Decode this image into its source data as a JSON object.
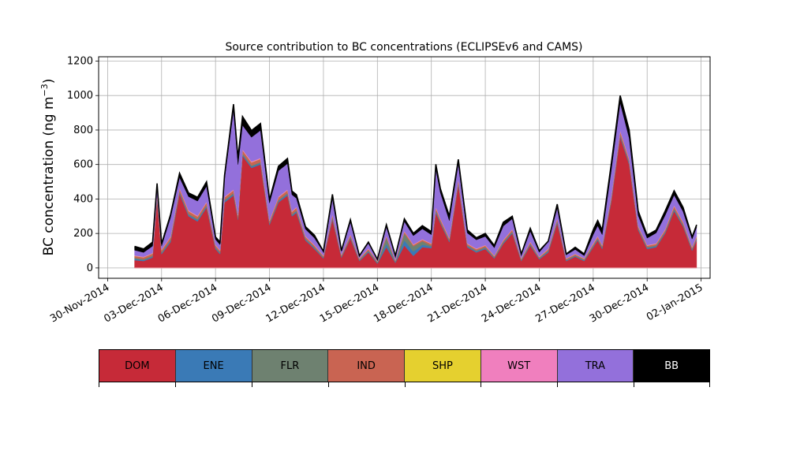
{
  "chart_data": {
    "type": "area",
    "title": "Source contribution to BC concentrations (ECLIPSEv6 and CAMS)",
    "ylabel_main": "BC concentration (ng m",
    "ylabel_sup": "−3",
    "ylabel_end": ")",
    "xlabel": "",
    "xlim": [
      "2014-11-29T12:00",
      "2015-01-02T12:00"
    ],
    "ylim": [
      -60,
      1225
    ],
    "grid": true,
    "legend_placement": "bottom",
    "x_ticks": [
      "2014-11-30",
      "2014-12-03",
      "2014-12-06",
      "2014-12-09",
      "2014-12-12",
      "2014-12-15",
      "2014-12-18",
      "2014-12-21",
      "2014-12-24",
      "2014-12-27",
      "2014-12-30",
      "2015-01-02"
    ],
    "x_tick_labels": [
      "30-Nov-2014",
      "03-Dec-2014",
      "06-Dec-2014",
      "09-Dec-2014",
      "12-Dec-2014",
      "15-Dec-2014",
      "18-Dec-2014",
      "21-Dec-2014",
      "24-Dec-2014",
      "27-Dec-2014",
      "30-Dec-2014",
      "02-Jan-2015"
    ],
    "y_ticks": [
      0,
      200,
      400,
      600,
      800,
      1000,
      1200
    ],
    "x": [
      "2014-12-01T12:00",
      "2014-12-02T00:00",
      "2014-12-02T12:00",
      "2014-12-02T18:00",
      "2014-12-03T00:00",
      "2014-12-03T12:00",
      "2014-12-04T00:00",
      "2014-12-04T12:00",
      "2014-12-05T00:00",
      "2014-12-05T12:00",
      "2014-12-06T00:00",
      "2014-12-06T06:00",
      "2014-12-06T12:00",
      "2014-12-07T00:00",
      "2014-12-07T06:00",
      "2014-12-07T12:00",
      "2014-12-08T00:00",
      "2014-12-08T12:00",
      "2014-12-09T00:00",
      "2014-12-09T12:00",
      "2014-12-10T00:00",
      "2014-12-10T06:00",
      "2014-12-10T12:00",
      "2014-12-11T00:00",
      "2014-12-11T12:00",
      "2014-12-12T00:00",
      "2014-12-12T12:00",
      "2014-12-13T00:00",
      "2014-12-13T12:00",
      "2014-12-14T00:00",
      "2014-12-14T12:00",
      "2014-12-15T00:00",
      "2014-12-15T12:00",
      "2014-12-16T00:00",
      "2014-12-16T12:00",
      "2014-12-17T00:00",
      "2014-12-17T12:00",
      "2014-12-18T00:00",
      "2014-12-18T06:00",
      "2014-12-18T12:00",
      "2014-12-19T00:00",
      "2014-12-19T12:00",
      "2014-12-20T00:00",
      "2014-12-20T12:00",
      "2014-12-21T00:00",
      "2014-12-21T12:00",
      "2014-12-22T00:00",
      "2014-12-22T12:00",
      "2014-12-23T00:00",
      "2014-12-23T12:00",
      "2014-12-24T00:00",
      "2014-12-24T12:00",
      "2014-12-25T00:00",
      "2014-12-25T12:00",
      "2014-12-26T00:00",
      "2014-12-26T12:00",
      "2014-12-27T00:00",
      "2014-12-27T06:00",
      "2014-12-27T12:00",
      "2014-12-28T00:00",
      "2014-12-28T12:00",
      "2014-12-29T00:00",
      "2014-12-29T12:00",
      "2014-12-30T00:00",
      "2014-12-30T12:00",
      "2014-12-31T00:00",
      "2014-12-31T12:00",
      "2015-01-01T00:00",
      "2015-01-01T12:00",
      "2015-01-01T18:00"
    ],
    "series": [
      {
        "name": "DOM",
        "color": "#c62a38",
        "values": [
          45,
          40,
          60,
          400,
          80,
          150,
          430,
          300,
          270,
          350,
          110,
          80,
          380,
          420,
          280,
          650,
          580,
          600,
          250,
          380,
          420,
          300,
          320,
          160,
          110,
          55,
          280,
          60,
          170,
          40,
          90,
          25,
          120,
          30,
          130,
          70,
          120,
          115,
          320,
          260,
          150,
          480,
          120,
          90,
          110,
          55,
          140,
          200,
          40,
          130,
          50,
          90,
          260,
          40,
          65,
          40,
          120,
          160,
          110,
          380,
          760,
          600,
          220,
          110,
          120,
          200,
          330,
          240,
          100,
          160
        ]
      },
      {
        "name": "ENE",
        "color": "#3a7ab6",
        "values": [
          8,
          6,
          6,
          6,
          6,
          8,
          8,
          8,
          8,
          8,
          6,
          6,
          8,
          8,
          6,
          8,
          8,
          8,
          6,
          8,
          8,
          6,
          8,
          6,
          6,
          4,
          8,
          4,
          6,
          4,
          6,
          4,
          20,
          4,
          30,
          25,
          15,
          8,
          8,
          6,
          6,
          8,
          6,
          6,
          6,
          4,
          6,
          6,
          4,
          6,
          4,
          6,
          8,
          4,
          4,
          4,
          6,
          6,
          6,
          8,
          8,
          8,
          6,
          6,
          6,
          6,
          8,
          6,
          6,
          6
        ]
      },
      {
        "name": "FLR",
        "color": "#6e8170",
        "values": [
          6,
          5,
          5,
          5,
          5,
          6,
          6,
          6,
          6,
          6,
          5,
          5,
          6,
          6,
          5,
          6,
          6,
          6,
          5,
          6,
          6,
          5,
          6,
          5,
          5,
          4,
          6,
          4,
          5,
          4,
          5,
          4,
          35,
          4,
          40,
          30,
          20,
          6,
          6,
          5,
          5,
          6,
          5,
          5,
          5,
          4,
          5,
          5,
          4,
          5,
          4,
          5,
          6,
          4,
          4,
          4,
          5,
          5,
          5,
          6,
          6,
          6,
          5,
          5,
          5,
          5,
          6,
          5,
          5,
          5
        ]
      },
      {
        "name": "IND",
        "color": "#c96452",
        "values": [
          10,
          10,
          12,
          15,
          12,
          14,
          16,
          15,
          14,
          15,
          10,
          10,
          15,
          16,
          14,
          18,
          18,
          18,
          12,
          15,
          16,
          14,
          15,
          10,
          9,
          6,
          12,
          6,
          10,
          5,
          8,
          4,
          8,
          5,
          10,
          8,
          8,
          10,
          14,
          12,
          10,
          16,
          8,
          8,
          8,
          6,
          8,
          10,
          5,
          8,
          5,
          7,
          10,
          5,
          6,
          5,
          8,
          10,
          8,
          14,
          18,
          15,
          10,
          8,
          8,
          10,
          14,
          12,
          8,
          10
        ]
      },
      {
        "name": "SHP",
        "color": "#e5d02f",
        "values": [
          1,
          1,
          1,
          1,
          1,
          1,
          1,
          1,
          1,
          1,
          1,
          1,
          1,
          1,
          1,
          1,
          1,
          1,
          1,
          1,
          1,
          1,
          1,
          1,
          1,
          1,
          1,
          1,
          1,
          1,
          1,
          1,
          1,
          1,
          1,
          1,
          1,
          1,
          1,
          1,
          1,
          1,
          1,
          1,
          1,
          1,
          1,
          1,
          1,
          1,
          1,
          1,
          1,
          1,
          1,
          1,
          1,
          1,
          1,
          1,
          1,
          1,
          1,
          1,
          1,
          1,
          1,
          1,
          1,
          1
        ]
      },
      {
        "name": "WST",
        "color": "#f07fbe",
        "values": [
          3,
          3,
          3,
          4,
          3,
          4,
          4,
          4,
          4,
          4,
          3,
          3,
          4,
          4,
          4,
          5,
          5,
          5,
          3,
          4,
          4,
          4,
          4,
          3,
          3,
          2,
          4,
          2,
          3,
          2,
          3,
          2,
          3,
          2,
          3,
          3,
          3,
          3,
          4,
          4,
          3,
          4,
          3,
          3,
          3,
          2,
          3,
          3,
          2,
          3,
          2,
          3,
          3,
          2,
          2,
          2,
          3,
          3,
          3,
          4,
          5,
          4,
          3,
          3,
          3,
          3,
          4,
          3,
          3,
          3
        ]
      },
      {
        "name": "TRA",
        "color": "#9370db",
        "values": [
          30,
          25,
          40,
          40,
          20,
          110,
          60,
          80,
          85,
          90,
          30,
          30,
          100,
          460,
          290,
          140,
          140,
          160,
          100,
          150,
          150,
          95,
          50,
          40,
          40,
          20,
          90,
          20,
          70,
          15,
          30,
          10,
          50,
          25,
          55,
          50,
          60,
          50,
          220,
          150,
          100,
          90,
          60,
          50,
          50,
          45,
          80,
          60,
          20,
          60,
          25,
          40,
          60,
          20,
          25,
          15,
          50,
          60,
          60,
          150,
          160,
          120,
          60,
          40,
          60,
          80,
          60,
          60,
          45,
          50
        ]
      },
      {
        "name": "BB",
        "color": "#000000",
        "values": [
          22,
          20,
          23,
          19,
          13,
          17,
          25,
          21,
          22,
          26,
          15,
          15,
          22,
          35,
          40,
          50,
          39,
          40,
          18,
          26,
          30,
          21,
          21,
          15,
          16,
          4,
          26,
          3,
          15,
          0,
          7,
          0,
          14,
          0,
          16,
          14,
          18,
          18,
          28,
          23,
          26,
          25,
          18,
          12,
          17,
          13,
          22,
          15,
          4,
          17,
          9,
          3,
          22,
          5,
          13,
          10,
          28,
          30,
          28,
          38,
          42,
          46,
          26,
          17,
          17,
          25,
          25,
          24,
          12,
          15
        ]
      }
    ]
  }
}
